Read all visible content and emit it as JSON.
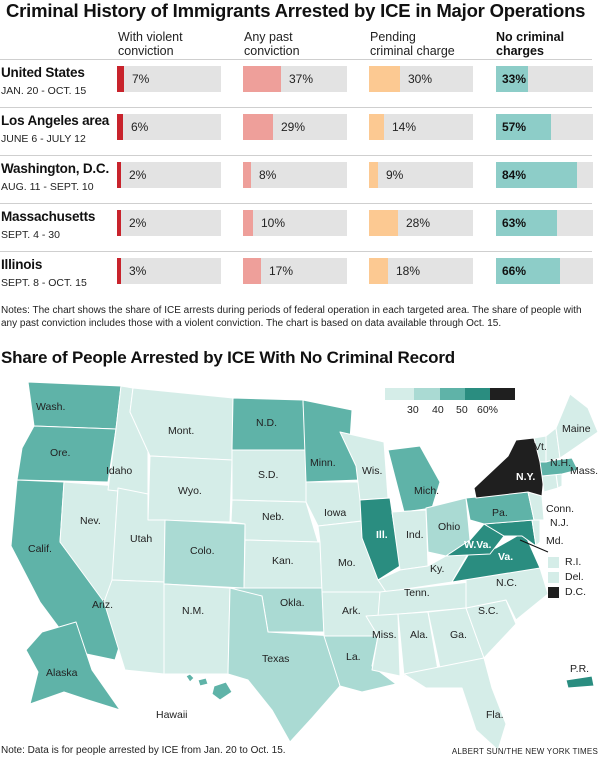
{
  "header": {
    "title": "Criminal History of Immigrants Arrested by ICE in Major Operations",
    "columns": [
      {
        "line1": "With violent",
        "line2": "conviction"
      },
      {
        "line1": "Any past",
        "line2": "conviction"
      },
      {
        "line1": "Pending",
        "line2": "criminal charge"
      },
      {
        "line1": "No criminal",
        "line2": "charges"
      }
    ]
  },
  "chart_data": [
    {
      "type": "bar",
      "title": "Criminal History of Immigrants Arrested by ICE in Major Operations",
      "series_columns": [
        "With violent conviction",
        "Any past conviction",
        "Pending criminal charge",
        "No criminal charges"
      ],
      "rows": [
        {
          "region": "United States",
          "dates": "JAN. 20 - OCT. 15",
          "values": [
            7,
            37,
            30,
            33
          ],
          "labels": [
            "7%",
            "37%",
            "30%",
            "33%"
          ]
        },
        {
          "region": "Los Angeles area",
          "dates": "JUNE 6 - JULY 12",
          "values": [
            6,
            29,
            14,
            57
          ],
          "labels": [
            "6%",
            "29%",
            "14%",
            "57%"
          ]
        },
        {
          "region": "Washington, D.C.",
          "dates": "AUG. 11 - SEPT. 10",
          "values": [
            2,
            8,
            9,
            84
          ],
          "labels": [
            "2%",
            "8%",
            "9%",
            "84%"
          ]
        },
        {
          "region": "Massachusetts",
          "dates": "SEPT. 4 - 30",
          "values": [
            2,
            10,
            28,
            63
          ],
          "labels": [
            "2%",
            "10%",
            "28%",
            "63%"
          ]
        },
        {
          "region": "Illinois",
          "dates": "SEPT. 8 - OCT. 15",
          "values": [
            3,
            17,
            18,
            66
          ],
          "labels": [
            "3%",
            "17%",
            "18%",
            "66%"
          ]
        }
      ],
      "xlim": [
        0,
        100
      ],
      "colors": [
        "#c8232c",
        "#ee9f9a",
        "#fcc992",
        "#8dcdc8"
      ]
    },
    {
      "type": "heatmap",
      "title": "Share of People Arrested by ICE With No Criminal Record",
      "legend": {
        "ticks": [
          "30",
          "40",
          "50",
          "60%"
        ],
        "colors": [
          "#d5ede8",
          "#aadad3",
          "#5fb3a8",
          "#2a8d80",
          "#1f1f1f"
        ],
        "placement": "top-right"
      },
      "insets": [
        {
          "label": "R.I.",
          "color": "#d5ede8"
        },
        {
          "label": "Del.",
          "color": "#d5ede8"
        },
        {
          "label": "D.C.",
          "color": "#1f1f1f"
        }
      ],
      "states": [
        "Wash.",
        "Ore.",
        "Calif.",
        "Nev.",
        "Idaho",
        "Mont.",
        "Wyo.",
        "Utah",
        "Ariz.",
        "Colo.",
        "N.M.",
        "N.D.",
        "S.D.",
        "Neb.",
        "Kan.",
        "Okla.",
        "Texas",
        "Minn.",
        "Iowa",
        "Mo.",
        "Ark.",
        "La.",
        "Wis.",
        "Ill.",
        "Mich.",
        "Ind.",
        "Ohio",
        "Ky.",
        "Tenn.",
        "Miss.",
        "Ala.",
        "Ga.",
        "Fla.",
        "S.C.",
        "N.C.",
        "Va.",
        "W.Va.",
        "Md.",
        "Pa.",
        "N.Y.",
        "N.J.",
        "Conn.",
        "Mass.",
        "Vt.",
        "N.H.",
        "Maine",
        "Alaska",
        "Hawaii",
        "P.R."
      ]
    }
  ],
  "notes": "Notes: The chart shows the share of ICE arrests during periods of federal operation in each targeted area. The share of people with any past conviction includes those with a violent conviction. The chart is based on data available through Oct. 15.",
  "footnote": "Note: Data is for people arrested by ICE from Jan. 20 to Oct. 15.",
  "credit": "ALBERT SUN/THE NEW YORK TIMES"
}
